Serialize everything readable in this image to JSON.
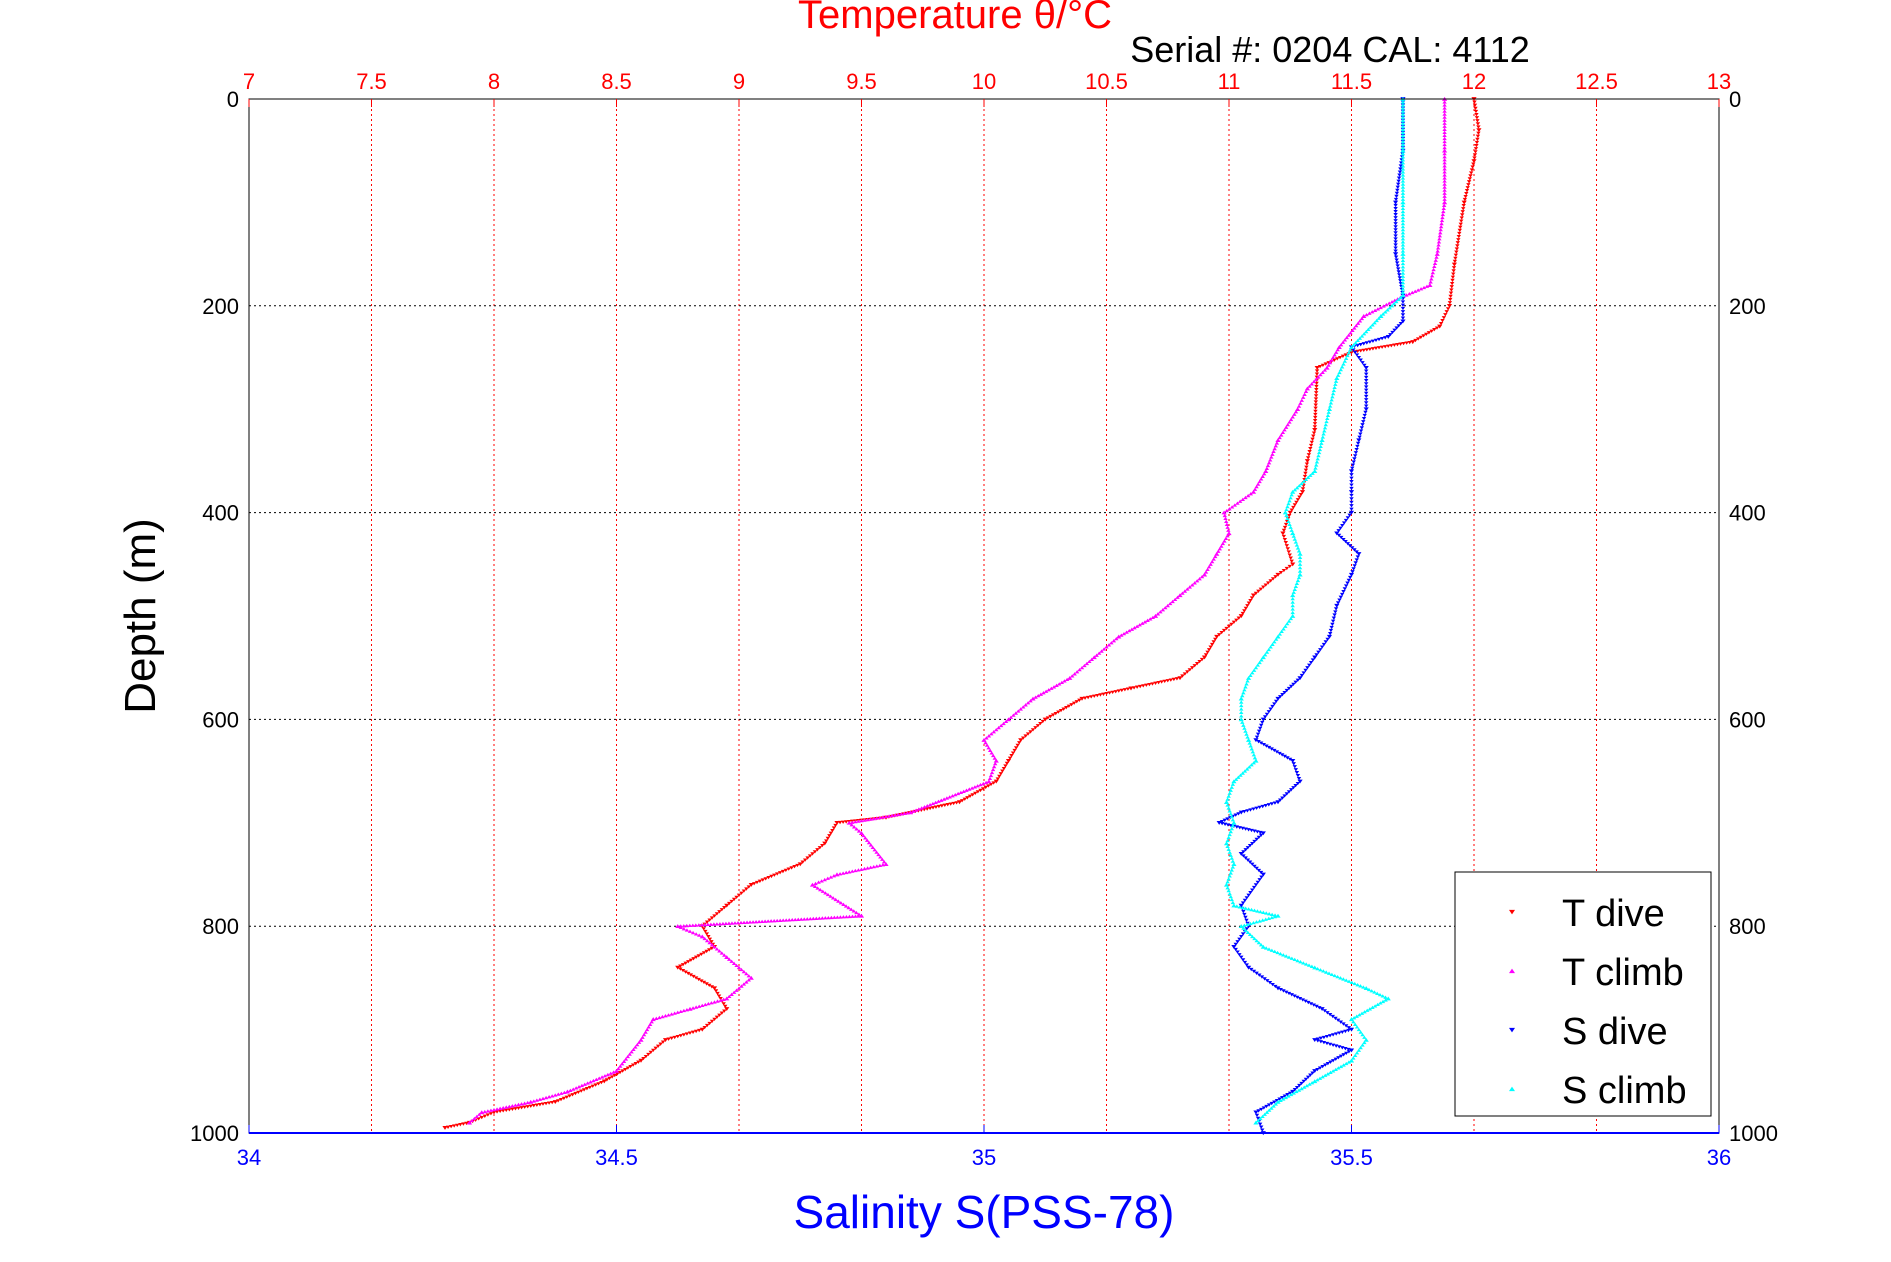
{
  "chart_data": {
    "type": "scatter",
    "title": "Temperature θ/°C",
    "subtitle": "Serial #: 0204  CAL: 4112",
    "xlabel": "Salinity S(PSS-78)",
    "ylabel": "Depth (m)",
    "top_xlabel": "Temperature θ/°C",
    "ylim": [
      1000,
      0
    ],
    "xlim_salinity": [
      34,
      36
    ],
    "xlim_temperature": [
      7,
      13
    ],
    "grid": true,
    "legend_position": "bottom-right",
    "y_ticks": [
      "0",
      "200",
      "400",
      "600",
      "800",
      "1000"
    ],
    "y_tick_values": [
      0,
      200,
      400,
      600,
      800,
      1000
    ],
    "x_ticks_salinity": [
      "34",
      "34.5",
      "35",
      "35.5",
      "36"
    ],
    "x_tick_values_salinity": [
      34,
      34.5,
      35,
      35.5,
      36
    ],
    "x_ticks_temperature": [
      "7",
      "7.5",
      "8",
      "8.5",
      "9",
      "9.5",
      "10",
      "10.5",
      "11",
      "11.5",
      "12",
      "12.5",
      "13"
    ],
    "x_tick_values_temperature": [
      7,
      7.5,
      8,
      8.5,
      9,
      9.5,
      10,
      10.5,
      11,
      11.5,
      12,
      12.5,
      13
    ],
    "colors": {
      "t_dive": "#ff0000",
      "t_climb": "#ff00ff",
      "s_dive": "#0000ff",
      "s_climb": "#00ffff",
      "temp_axis": "#ff0000",
      "sal_axis": "#0000ff"
    },
    "series": [
      {
        "name": "T dive",
        "axis": "temperature",
        "marker": "down-triangle",
        "color": "#ff0000",
        "points": [
          [
            12.0,
            0
          ],
          [
            12.02,
            30
          ],
          [
            12.0,
            60
          ],
          [
            11.96,
            100
          ],
          [
            11.92,
            160
          ],
          [
            11.9,
            200
          ],
          [
            11.86,
            220
          ],
          [
            11.75,
            235
          ],
          [
            11.5,
            245
          ],
          [
            11.36,
            260
          ],
          [
            11.35,
            320
          ],
          [
            11.32,
            350
          ],
          [
            11.3,
            380
          ],
          [
            11.25,
            400
          ],
          [
            11.22,
            420
          ],
          [
            11.26,
            450
          ],
          [
            11.2,
            460
          ],
          [
            11.1,
            480
          ],
          [
            11.05,
            500
          ],
          [
            10.95,
            520
          ],
          [
            10.9,
            540
          ],
          [
            10.8,
            560
          ],
          [
            10.6,
            570
          ],
          [
            10.4,
            580
          ],
          [
            10.25,
            600
          ],
          [
            10.15,
            620
          ],
          [
            10.1,
            640
          ],
          [
            10.05,
            660
          ],
          [
            9.9,
            680
          ],
          [
            9.6,
            695
          ],
          [
            9.4,
            700
          ],
          [
            9.35,
            720
          ],
          [
            9.25,
            740
          ],
          [
            9.05,
            760
          ],
          [
            8.95,
            780
          ],
          [
            8.85,
            800
          ],
          [
            8.9,
            820
          ],
          [
            8.75,
            840
          ],
          [
            8.9,
            860
          ],
          [
            8.95,
            880
          ],
          [
            8.85,
            900
          ],
          [
            8.7,
            910
          ],
          [
            8.6,
            930
          ],
          [
            8.45,
            950
          ],
          [
            8.25,
            970
          ],
          [
            8.0,
            980
          ],
          [
            7.9,
            990
          ],
          [
            7.8,
            995
          ]
        ]
      },
      {
        "name": "T climb",
        "axis": "temperature",
        "marker": "up-triangle",
        "color": "#ff00ff",
        "points": [
          [
            11.88,
            0
          ],
          [
            11.88,
            50
          ],
          [
            11.88,
            100
          ],
          [
            11.85,
            150
          ],
          [
            11.82,
            180
          ],
          [
            11.7,
            192
          ],
          [
            11.55,
            210
          ],
          [
            11.45,
            240
          ],
          [
            11.4,
            260
          ],
          [
            11.32,
            280
          ],
          [
            11.28,
            300
          ],
          [
            11.2,
            330
          ],
          [
            11.15,
            360
          ],
          [
            11.1,
            380
          ],
          [
            10.98,
            400
          ],
          [
            11.0,
            420
          ],
          [
            10.95,
            440
          ],
          [
            10.9,
            460
          ],
          [
            10.8,
            480
          ],
          [
            10.7,
            500
          ],
          [
            10.55,
            520
          ],
          [
            10.45,
            540
          ],
          [
            10.35,
            560
          ],
          [
            10.2,
            580
          ],
          [
            10.1,
            600
          ],
          [
            10.0,
            620
          ],
          [
            10.05,
            640
          ],
          [
            10.02,
            660
          ],
          [
            9.7,
            690
          ],
          [
            9.45,
            700
          ],
          [
            9.5,
            710
          ],
          [
            9.6,
            740
          ],
          [
            9.4,
            750
          ],
          [
            9.3,
            760
          ],
          [
            9.5,
            790
          ],
          [
            8.75,
            800
          ],
          [
            8.85,
            810
          ],
          [
            8.95,
            830
          ],
          [
            9.05,
            850
          ],
          [
            8.95,
            870
          ],
          [
            8.8,
            880
          ],
          [
            8.65,
            890
          ],
          [
            8.6,
            910
          ],
          [
            8.5,
            940
          ],
          [
            8.3,
            960
          ],
          [
            8.15,
            970
          ],
          [
            7.95,
            980
          ],
          [
            7.9,
            990
          ]
        ]
      },
      {
        "name": "S dive",
        "axis": "salinity",
        "marker": "down-triangle",
        "color": "#0000ff",
        "points": [
          [
            35.57,
            0
          ],
          [
            35.57,
            50
          ],
          [
            35.56,
            100
          ],
          [
            35.56,
            150
          ],
          [
            35.57,
            190
          ],
          [
            35.57,
            215
          ],
          [
            35.55,
            230
          ],
          [
            35.5,
            240
          ],
          [
            35.52,
            260
          ],
          [
            35.52,
            300
          ],
          [
            35.51,
            330
          ],
          [
            35.5,
            360
          ],
          [
            35.5,
            380
          ],
          [
            35.5,
            400
          ],
          [
            35.48,
            420
          ],
          [
            35.51,
            440
          ],
          [
            35.5,
            460
          ],
          [
            35.48,
            490
          ],
          [
            35.47,
            520
          ],
          [
            35.45,
            540
          ],
          [
            35.43,
            560
          ],
          [
            35.4,
            580
          ],
          [
            35.38,
            600
          ],
          [
            35.37,
            620
          ],
          [
            35.42,
            640
          ],
          [
            35.43,
            660
          ],
          [
            35.4,
            680
          ],
          [
            35.35,
            690
          ],
          [
            35.32,
            700
          ],
          [
            35.38,
            710
          ],
          [
            35.35,
            730
          ],
          [
            35.38,
            750
          ],
          [
            35.35,
            780
          ],
          [
            35.36,
            800
          ],
          [
            35.34,
            820
          ],
          [
            35.36,
            840
          ],
          [
            35.4,
            860
          ],
          [
            35.46,
            880
          ],
          [
            35.5,
            900
          ],
          [
            35.45,
            910
          ],
          [
            35.5,
            920
          ],
          [
            35.45,
            940
          ],
          [
            35.42,
            960
          ],
          [
            35.37,
            980
          ],
          [
            35.38,
            1000
          ]
        ]
      },
      {
        "name": "S climb",
        "axis": "salinity",
        "marker": "up-triangle",
        "color": "#00ffff",
        "points": [
          [
            35.57,
            0
          ],
          [
            35.57,
            50
          ],
          [
            35.57,
            100
          ],
          [
            35.57,
            150
          ],
          [
            35.57,
            190
          ],
          [
            35.54,
            210
          ],
          [
            35.5,
            240
          ],
          [
            35.48,
            270
          ],
          [
            35.47,
            300
          ],
          [
            35.46,
            330
          ],
          [
            35.45,
            360
          ],
          [
            35.42,
            380
          ],
          [
            35.41,
            400
          ],
          [
            35.42,
            420
          ],
          [
            35.43,
            440
          ],
          [
            35.43,
            460
          ],
          [
            35.42,
            480
          ],
          [
            35.42,
            500
          ],
          [
            35.4,
            520
          ],
          [
            35.38,
            540
          ],
          [
            35.36,
            560
          ],
          [
            35.35,
            580
          ],
          [
            35.35,
            600
          ],
          [
            35.36,
            620
          ],
          [
            35.37,
            640
          ],
          [
            35.34,
            660
          ],
          [
            35.33,
            680
          ],
          [
            35.34,
            700
          ],
          [
            35.33,
            720
          ],
          [
            35.34,
            740
          ],
          [
            35.33,
            760
          ],
          [
            35.34,
            780
          ],
          [
            35.4,
            790
          ],
          [
            35.35,
            800
          ],
          [
            35.38,
            820
          ],
          [
            35.45,
            840
          ],
          [
            35.52,
            860
          ],
          [
            35.55,
            870
          ],
          [
            35.5,
            890
          ],
          [
            35.52,
            910
          ],
          [
            35.5,
            930
          ],
          [
            35.45,
            950
          ],
          [
            35.4,
            970
          ],
          [
            35.37,
            990
          ]
        ]
      }
    ]
  }
}
